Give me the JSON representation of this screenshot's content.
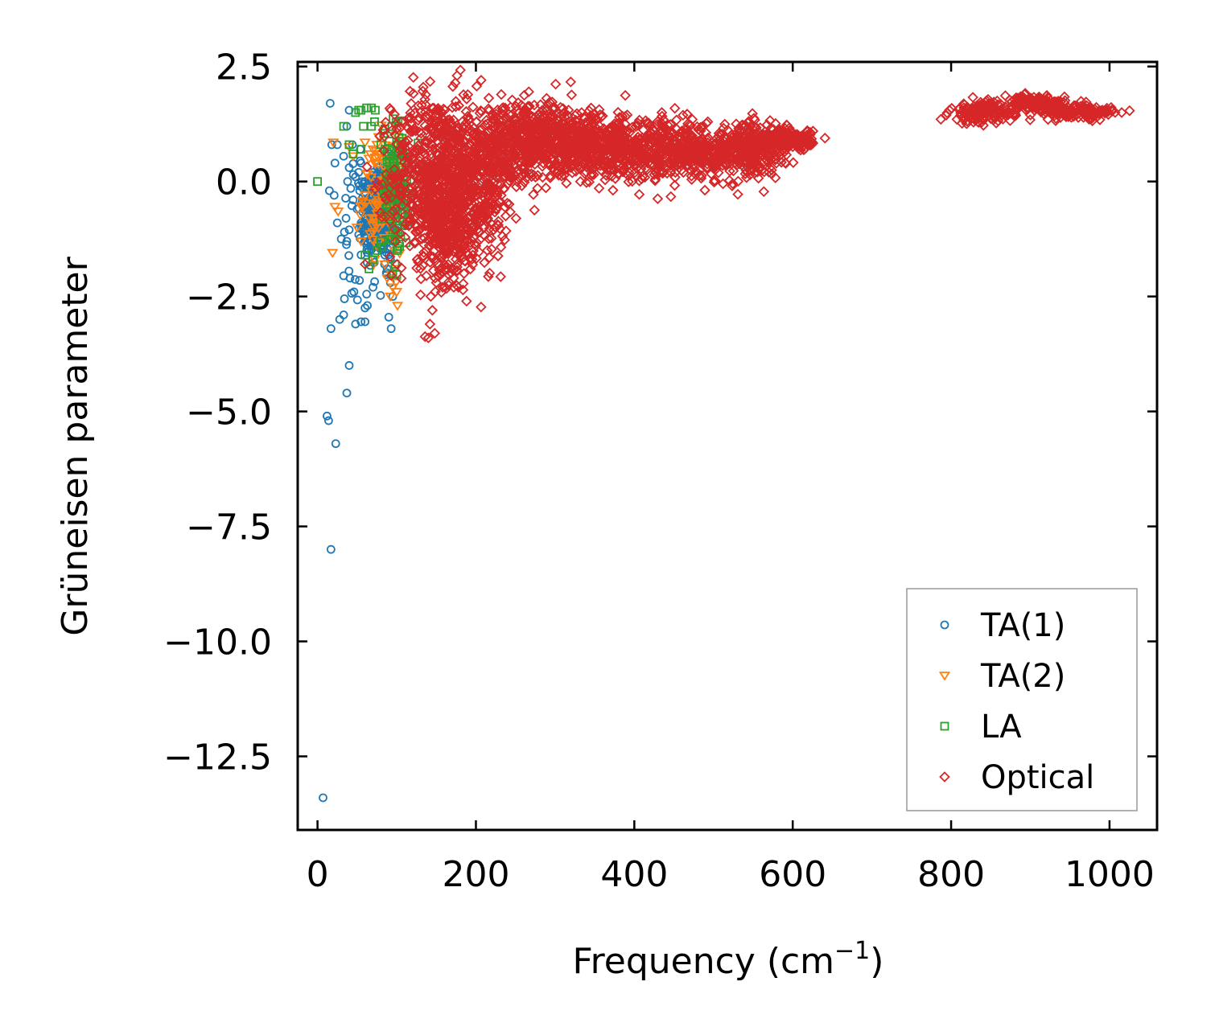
{
  "chart_data": {
    "type": "scatter",
    "xlabel": "Frequency (cm",
    "xlabel_sup": "−1",
    "xlabel_close": ")",
    "ylabel": "Grüneisen parameter",
    "xlim": [
      -25,
      1060
    ],
    "ylim": [
      -14.1,
      2.6
    ],
    "xticks": [
      0,
      200,
      400,
      600,
      800,
      1000
    ],
    "xtick_labels": [
      "0",
      "200",
      "400",
      "600",
      "800",
      "1000"
    ],
    "yticks": [
      2.5,
      0.0,
      -2.5,
      -5.0,
      -7.5,
      -10.0,
      -12.5
    ],
    "ytick_labels": [
      "2.5",
      "0.0",
      "−2.5",
      "−5.0",
      "−7.5",
      "−10.0",
      "−12.5"
    ],
    "legend_position": "lower-right",
    "series": [
      {
        "name": "TA(1)",
        "marker": "circle",
        "color": "#1f77b4",
        "points": [
          [
            16,
            1.7
          ],
          [
            7,
            -13.4
          ],
          [
            17,
            -8.0
          ],
          [
            12,
            -5.1
          ],
          [
            14,
            -5.2
          ],
          [
            23,
            -5.7
          ],
          [
            37,
            -4.6
          ],
          [
            40,
            -4.0
          ],
          [
            17,
            -3.2
          ],
          [
            28,
            -3.0
          ],
          [
            33,
            -2.9
          ],
          [
            48,
            -3.1
          ],
          [
            55,
            -3.05
          ],
          [
            60,
            -2.75
          ],
          [
            60,
            -3.05
          ],
          [
            90,
            -2.95
          ],
          [
            93,
            -3.2
          ],
          [
            34,
            -2.55
          ],
          [
            33,
            -2.05
          ],
          [
            41,
            -2.1
          ],
          [
            46,
            -2.4
          ],
          [
            53,
            -2.15
          ],
          [
            62,
            -2.45
          ],
          [
            70,
            -2.3
          ],
          [
            30,
            -1.25
          ],
          [
            37,
            -1.3
          ],
          [
            40,
            -1.05
          ],
          [
            25,
            -0.9
          ],
          [
            34,
            -1.1
          ],
          [
            36,
            -0.8
          ],
          [
            15,
            -0.2
          ],
          [
            21,
            -0.3
          ],
          [
            33,
            0.55
          ],
          [
            37,
            1.2
          ],
          [
            40,
            1.55
          ],
          [
            44,
            0.8
          ],
          [
            52,
            0.2
          ],
          [
            54,
            0.7
          ],
          [
            18,
            0.8
          ],
          [
            25,
            0.8
          ],
          [
            22,
            0.4
          ],
          [
            38,
            0.0
          ],
          [
            42,
            -0.15
          ],
          [
            45,
            -0.4
          ],
          [
            50,
            -0.6
          ],
          [
            55,
            -0.9
          ],
          [
            60,
            -1.2
          ],
          [
            65,
            -1.5
          ],
          [
            70,
            -0.3
          ],
          [
            75,
            -0.8
          ],
          [
            80,
            -1.0
          ],
          [
            85,
            -1.6
          ],
          [
            88,
            -1.9
          ],
          [
            92,
            -2.2
          ],
          [
            95,
            -2.5
          ],
          [
            98,
            -1.1
          ],
          [
            100,
            -0.4
          ],
          [
            100,
            0.1
          ],
          [
            80,
            0.1
          ],
          [
            70,
            0.2
          ],
          [
            60,
            0.0
          ],
          [
            48,
            0.1
          ],
          [
            40,
            0.3
          ],
          [
            55,
            0.4
          ]
        ],
        "clusters": [
          {
            "cx": 80,
            "cy": -0.6,
            "sx": 11,
            "sy": 0.5,
            "n": 320
          },
          {
            "cx": 66,
            "cy": -1.0,
            "sx": 14,
            "sy": 0.8,
            "n": 60
          }
        ]
      },
      {
        "name": "TA(2)",
        "marker": "triangle-down",
        "color": "#ff7f0e",
        "points": [
          [
            20,
            0.85
          ],
          [
            22,
            -0.55
          ],
          [
            26,
            -0.65
          ],
          [
            19,
            -1.55
          ],
          [
            40,
            0.75
          ],
          [
            45,
            0.55
          ],
          [
            60,
            0.85
          ],
          [
            65,
            0.5
          ],
          [
            70,
            0.7
          ],
          [
            75,
            0.8
          ],
          [
            80,
            0.6
          ],
          [
            85,
            0.4
          ],
          [
            88,
            0.2
          ],
          [
            90,
            0.0
          ],
          [
            92,
            -0.4
          ],
          [
            94,
            -0.8
          ],
          [
            96,
            -1.2
          ],
          [
            97,
            -1.5
          ],
          [
            98,
            -1.9
          ],
          [
            99,
            -2.2
          ],
          [
            100,
            -2.4
          ],
          [
            101,
            -2.7
          ],
          [
            60,
            -0.3
          ],
          [
            65,
            -0.8
          ],
          [
            70,
            -1.1
          ],
          [
            75,
            -1.4
          ],
          [
            55,
            -1.3
          ],
          [
            50,
            -1.0
          ],
          [
            85,
            -1.8
          ],
          [
            88,
            -2.1
          ],
          [
            92,
            -2.5
          ],
          [
            95,
            -2.3
          ]
        ],
        "clusters": [
          {
            "cx": 82,
            "cy": -0.3,
            "sx": 12,
            "sy": 0.6,
            "n": 90
          }
        ]
      },
      {
        "name": "LA",
        "marker": "square",
        "color": "#2ca02c",
        "points": [
          [
            0,
            0.0
          ],
          [
            48,
            1.5
          ],
          [
            52,
            1.55
          ],
          [
            55,
            1.55
          ],
          [
            62,
            1.6
          ],
          [
            68,
            1.6
          ],
          [
            73,
            1.55
          ],
          [
            58,
            1.2
          ],
          [
            72,
            1.3
          ],
          [
            68,
            1.2
          ],
          [
            33,
            1.2
          ],
          [
            40,
            0.8
          ],
          [
            45,
            0.6
          ],
          [
            55,
            0.7
          ],
          [
            80,
            0.8
          ],
          [
            85,
            0.7
          ],
          [
            90,
            0.6
          ],
          [
            95,
            0.4
          ],
          [
            100,
            0.5
          ],
          [
            105,
            0.3
          ],
          [
            108,
            0.1
          ],
          [
            110,
            -0.2
          ],
          [
            112,
            -0.5
          ],
          [
            115,
            -0.8
          ],
          [
            118,
            -0.5
          ],
          [
            120,
            -0.3
          ],
          [
            105,
            -1.2
          ],
          [
            100,
            -1.5
          ],
          [
            98,
            -1.8
          ],
          [
            95,
            -2.0
          ],
          [
            60,
            -1.6
          ],
          [
            65,
            -1.9
          ],
          [
            70,
            -1.7
          ],
          [
            75,
            -1.5
          ],
          [
            80,
            -1.3
          ]
        ],
        "clusters": [
          {
            "cx": 100,
            "cy": -0.1,
            "sx": 9,
            "sy": 0.7,
            "n": 130
          }
        ]
      },
      {
        "name": "Optical",
        "marker": "diamond",
        "color": "#d62728",
        "points": [
          [
            112,
            1.2
          ],
          [
            118,
            1.25
          ],
          [
            124,
            1.1
          ],
          [
            100,
            1.15
          ],
          [
            106,
            1.3
          ],
          [
            140,
            -3.4
          ],
          [
            142,
            -3.1
          ],
          [
            145,
            -2.8
          ],
          [
            148,
            -3.3
          ],
          [
            143,
            -2.5
          ],
          [
            150,
            -2.2
          ],
          [
            155,
            -2.0
          ],
          [
            158,
            -2.3
          ],
          [
            165,
            -1.8
          ],
          [
            172,
            -2.1
          ],
          [
            178,
            -2.3
          ],
          [
            185,
            -2.0
          ],
          [
            190,
            -1.6
          ],
          [
            196,
            -1.6
          ],
          [
            200,
            -1.4
          ],
          [
            210,
            -1.0
          ],
          [
            215,
            -0.8
          ],
          [
            225,
            -0.6
          ],
          [
            232,
            -0.3
          ],
          [
            285,
            0.4
          ],
          [
            320,
            0.3
          ],
          [
            340,
            0.5
          ],
          [
            245,
            0.1
          ],
          [
            250,
            0.3
          ]
        ],
        "clusters": [
          {
            "cx": 150,
            "cy": 0.1,
            "sx": 28,
            "sy": 0.9,
            "n": 700
          },
          {
            "cx": 165,
            "cy": -1.0,
            "sx": 20,
            "sy": 0.6,
            "n": 250
          },
          {
            "cx": 205,
            "cy": -0.1,
            "sx": 18,
            "sy": 0.8,
            "n": 250
          },
          {
            "cx": 235,
            "cy": 0.7,
            "sx": 30,
            "sy": 0.5,
            "n": 300
          },
          {
            "cx": 280,
            "cy": 1.0,
            "sx": 30,
            "sy": 0.4,
            "n": 300
          },
          {
            "cx": 330,
            "cy": 0.85,
            "sx": 25,
            "sy": 0.35,
            "n": 250
          },
          {
            "cx": 380,
            "cy": 0.65,
            "sx": 30,
            "sy": 0.3,
            "n": 250
          },
          {
            "cx": 440,
            "cy": 0.7,
            "sx": 30,
            "sy": 0.3,
            "n": 250
          },
          {
            "cx": 500,
            "cy": 0.6,
            "sx": 30,
            "sy": 0.25,
            "n": 250
          },
          {
            "cx": 550,
            "cy": 0.75,
            "sx": 20,
            "sy": 0.3,
            "n": 220
          },
          {
            "cx": 595,
            "cy": 0.9,
            "sx": 15,
            "sy": 0.12,
            "n": 160
          },
          {
            "cx": 840,
            "cy": 1.5,
            "sx": 20,
            "sy": 0.12,
            "n": 130
          },
          {
            "cx": 905,
            "cy": 1.7,
            "sx": 20,
            "sy": 0.08,
            "n": 130
          },
          {
            "cx": 965,
            "cy": 1.5,
            "sx": 25,
            "sy": 0.08,
            "n": 130
          }
        ]
      }
    ]
  }
}
